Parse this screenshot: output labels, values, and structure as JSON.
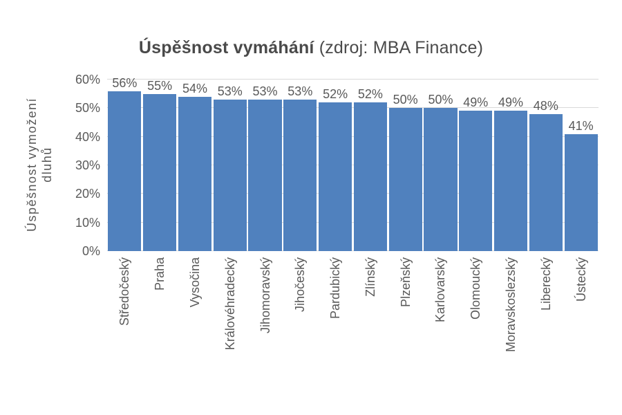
{
  "chart_data": {
    "type": "bar",
    "title": "Úspěšnost vymáhání (zdroj: MBA Finance)",
    "title_bold": "Úspěšnost vymáhání",
    "title_normal": " (zdroj: MBA Finance)",
    "xlabel": "",
    "ylabel": "Úspěšnost vymožení dluhů",
    "ylabel_lines": [
      "Úspěšnost vymožení",
      "dluhů"
    ],
    "categories": [
      "Středočeský",
      "Praha",
      "Vysočina",
      "Královéhradecký",
      "Jihomoravský",
      "Jihočeský",
      "Pardubický",
      "Zlínský",
      "Plzeňský",
      "Karlovarský",
      "Olomoucký",
      "Moravskoslezský",
      "Liberecký",
      "Ústecký"
    ],
    "values": [
      56,
      55,
      54,
      53,
      53,
      53,
      52,
      52,
      50,
      50,
      49,
      49,
      48,
      41
    ],
    "unit": "%",
    "data_labels": [
      "56%",
      "55%",
      "54%",
      "53%",
      "53%",
      "53%",
      "52%",
      "52%",
      "50%",
      "50%",
      "49%",
      "49%",
      "48%",
      "41%"
    ],
    "ylim": [
      0,
      60
    ],
    "y_tick_values": [
      0,
      10,
      20,
      30,
      40,
      50,
      60
    ],
    "y_ticks": [
      "0%",
      "10%",
      "20%",
      "30%",
      "40%",
      "50%",
      "60%"
    ],
    "grid": true,
    "legend": false,
    "colors": {
      "bar": "#5081BE",
      "gridline": "#d9d9d9",
      "labels": "#595959",
      "title": "#4a4a4a",
      "background": "#ffffff"
    }
  }
}
